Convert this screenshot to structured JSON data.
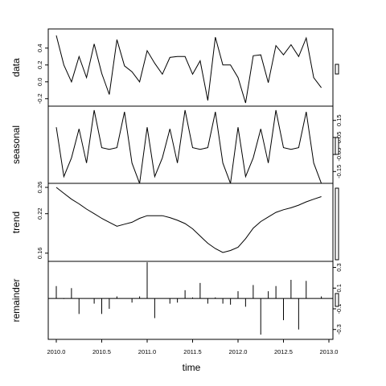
{
  "chart_data": {
    "type": "line",
    "title": "",
    "xlabel": "time",
    "xlim": [
      2010.0,
      2013.0
    ],
    "x_ticks": [
      "2010.0",
      "2010.5",
      "2011.0",
      "2011.5",
      "2012.0",
      "2012.5",
      "2013.0"
    ],
    "x": [
      2010.0,
      2010.083,
      2010.167,
      2010.25,
      2010.333,
      2010.417,
      2010.5,
      2010.583,
      2010.667,
      2010.75,
      2010.833,
      2010.917,
      2011.0,
      2011.083,
      2011.167,
      2011.25,
      2011.333,
      2011.417,
      2011.5,
      2011.583,
      2011.667,
      2011.75,
      2011.833,
      2011.917,
      2012.0,
      2012.083,
      2012.167,
      2012.25,
      2012.333,
      2012.417,
      2012.5,
      2012.583,
      2012.667,
      2012.75,
      2012.833,
      2012.917
    ],
    "panels": [
      {
        "name": "data",
        "ylabel": "data",
        "ylim": [
          -0.25,
          0.57
        ],
        "yticks": [
          "-0.2",
          "0.0",
          "0.2",
          "0.4"
        ],
        "ytick_values": [
          -0.2,
          0.0,
          0.2,
          0.4
        ],
        "axis_side": "left",
        "style": "line",
        "values": [
          0.55,
          0.2,
          0.0,
          0.3,
          0.05,
          0.45,
          0.1,
          -0.15,
          0.5,
          0.19,
          0.12,
          0.0,
          0.37,
          0.22,
          0.09,
          0.29,
          0.3,
          0.3,
          0.09,
          0.25,
          -0.22,
          0.53,
          0.2,
          0.2,
          0.05,
          -0.25,
          0.31,
          0.32,
          -0.01,
          0.43,
          0.32,
          0.44,
          0.3,
          0.52,
          0.05,
          -0.07
        ]
      },
      {
        "name": "seasonal",
        "ylabel": "seasonal",
        "ylim": [
          -0.21,
          0.21
        ],
        "yticks": [
          "-0.15",
          "-0.05",
          "0.05",
          "0.15"
        ],
        "ytick_values": [
          -0.15,
          -0.05,
          0.05,
          0.15
        ],
        "axis_side": "right",
        "style": "line",
        "values": [
          0.11,
          -0.18,
          -0.07,
          0.1,
          -0.1,
          0.21,
          -0.01,
          -0.02,
          -0.01,
          0.2,
          -0.1,
          -0.22,
          0.11,
          -0.18,
          -0.07,
          0.1,
          -0.1,
          0.21,
          -0.01,
          -0.02,
          -0.01,
          0.2,
          -0.1,
          -0.22,
          0.11,
          -0.18,
          -0.07,
          0.1,
          -0.1,
          0.21,
          -0.01,
          -0.02,
          -0.01,
          0.2,
          -0.1,
          -0.22
        ]
      },
      {
        "name": "trend",
        "ylabel": "trend",
        "ylim": [
          0.15,
          0.26
        ],
        "yticks": [
          "0.16",
          "0.22",
          "0.26"
        ],
        "ytick_values": [
          0.16,
          0.22,
          0.26
        ],
        "axis_side": "left",
        "style": "line",
        "values": [
          0.26,
          0.251,
          0.242,
          0.235,
          0.227,
          0.22,
          0.213,
          0.207,
          0.201,
          0.204,
          0.207,
          0.213,
          0.217,
          0.217,
          0.217,
          0.214,
          0.21,
          0.205,
          0.197,
          0.186,
          0.175,
          0.167,
          0.161,
          0.164,
          0.169,
          0.182,
          0.198,
          0.208,
          0.215,
          0.222,
          0.226,
          0.229,
          0.233,
          0.238,
          0.242,
          0.246
        ]
      },
      {
        "name": "remainder",
        "ylabel": "remainder",
        "ylim": [
          -0.38,
          0.32
        ],
        "yticks": [
          "-0.3",
          "-0.1",
          "0.1",
          "0.3"
        ],
        "ytick_values": [
          -0.3,
          -0.1,
          0.1,
          0.3
        ],
        "axis_side": "right",
        "style": "histogram",
        "values": [
          0.12,
          -0.005,
          0.1,
          -0.15,
          0.0,
          -0.05,
          -0.15,
          -0.1,
          0.02,
          0.0,
          -0.04,
          0.02,
          0.35,
          -0.19,
          0.0,
          -0.05,
          -0.04,
          0.08,
          0.01,
          0.15,
          -0.05,
          0.01,
          -0.05,
          -0.06,
          0.07,
          -0.08,
          0.13,
          -0.35,
          0.07,
          0.12,
          -0.21,
          0.18,
          -0.3,
          0.17,
          0.0,
          0.02
        ]
      }
    ],
    "grid": false,
    "legend": "none"
  }
}
